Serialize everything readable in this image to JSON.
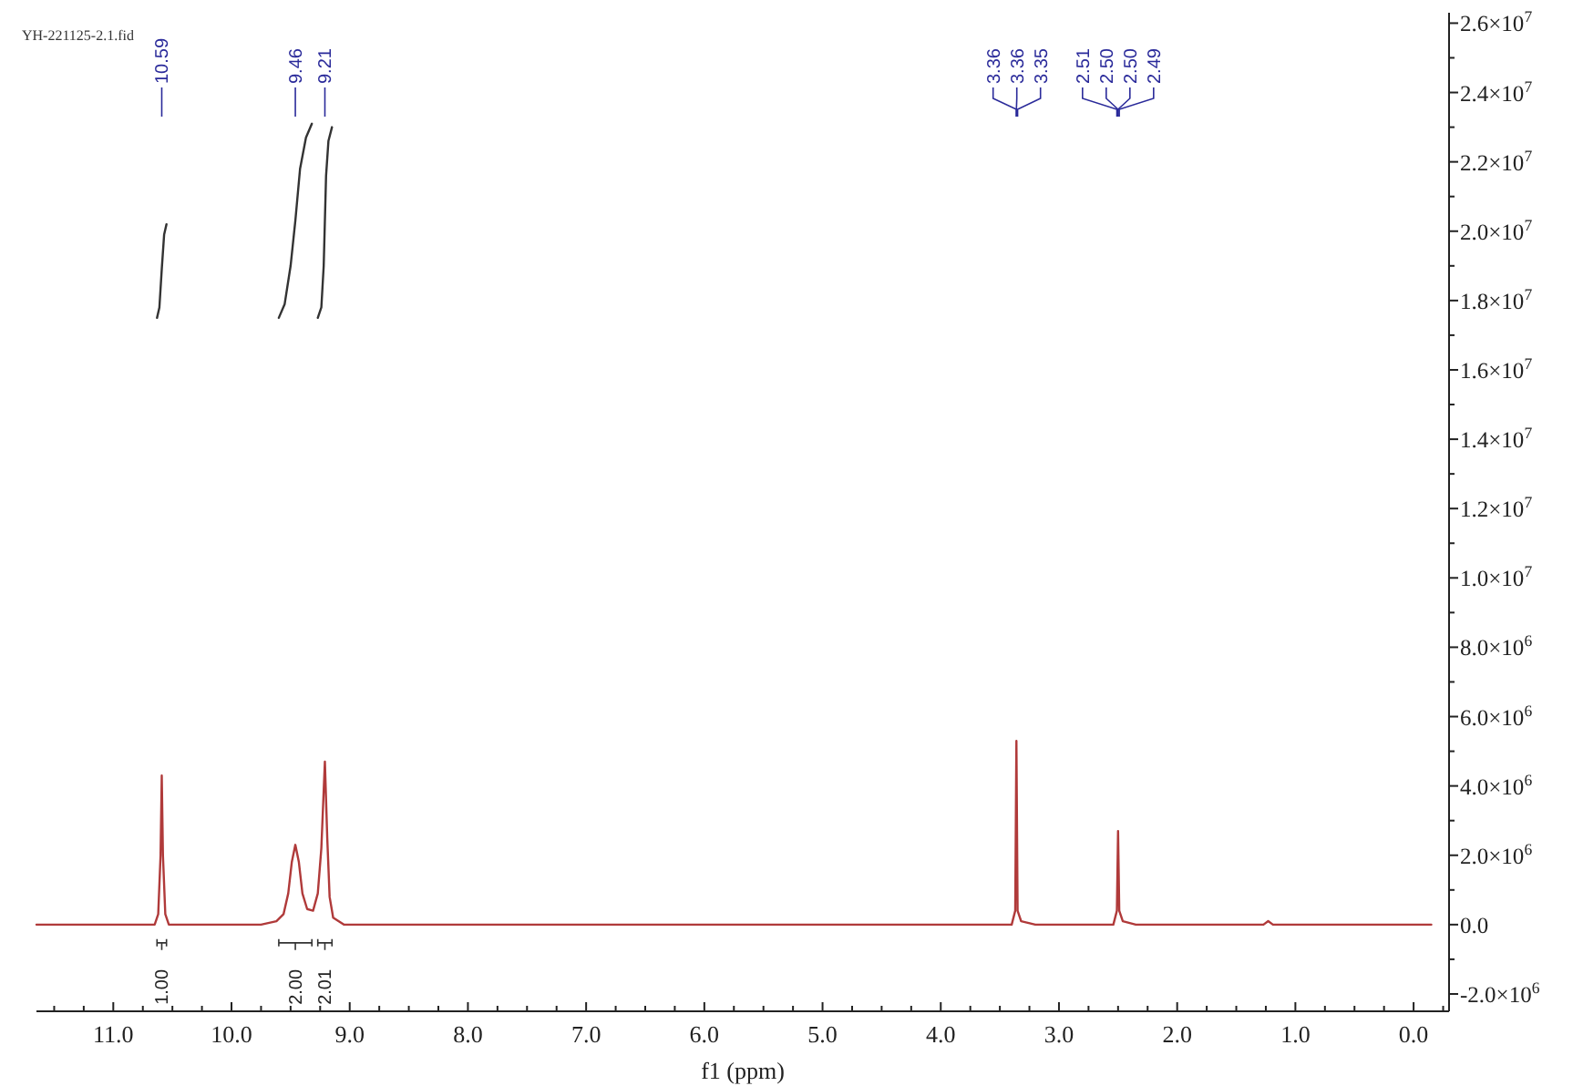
{
  "chart_data": {
    "type": "line",
    "title": "YH-221125-2.1.fid",
    "xlabel": "f1 (ppm)",
    "xlim": [
      11.65,
      -0.3
    ],
    "xticks": [
      {
        "value": 11.5,
        "label": null
      },
      {
        "value": 11.25,
        "label": null
      },
      {
        "value": 11,
        "label": "11.0"
      },
      {
        "value": 10.75,
        "label": null
      },
      {
        "value": 10.5,
        "label": null
      },
      {
        "value": 10.25,
        "label": null
      },
      {
        "value": 10,
        "label": "10.0"
      },
      {
        "value": 9.75,
        "label": null
      },
      {
        "value": 9.5,
        "label": null
      },
      {
        "value": 9.25,
        "label": null
      },
      {
        "value": 9,
        "label": "9.0"
      },
      {
        "value": 8.75,
        "label": null
      },
      {
        "value": 8.5,
        "label": null
      },
      {
        "value": 8.25,
        "label": null
      },
      {
        "value": 8,
        "label": "8.0"
      },
      {
        "value": 7.75,
        "label": null
      },
      {
        "value": 7.5,
        "label": null
      },
      {
        "value": 7.25,
        "label": null
      },
      {
        "value": 7,
        "label": "7.0"
      },
      {
        "value": 6.75,
        "label": null
      },
      {
        "value": 6.5,
        "label": null
      },
      {
        "value": 6.25,
        "label": null
      },
      {
        "value": 6,
        "label": "6.0"
      },
      {
        "value": 5.75,
        "label": null
      },
      {
        "value": 5.5,
        "label": null
      },
      {
        "value": 5.25,
        "label": null
      },
      {
        "value": 5,
        "label": "5.0"
      },
      {
        "value": 4.75,
        "label": null
      },
      {
        "value": 4.5,
        "label": null
      },
      {
        "value": 4.25,
        "label": null
      },
      {
        "value": 4,
        "label": "4.0"
      },
      {
        "value": 3.75,
        "label": null
      },
      {
        "value": 3.5,
        "label": null
      },
      {
        "value": 3.25,
        "label": null
      },
      {
        "value": 3,
        "label": "3.0"
      },
      {
        "value": 2.75,
        "label": null
      },
      {
        "value": 2.5,
        "label": null
      },
      {
        "value": 2.25,
        "label": null
      },
      {
        "value": 2,
        "label": "2.0"
      },
      {
        "value": 1.75,
        "label": null
      },
      {
        "value": 1.5,
        "label": null
      },
      {
        "value": 1.25,
        "label": null
      },
      {
        "value": 1,
        "label": "1.0"
      },
      {
        "value": 0.75,
        "label": null
      },
      {
        "value": 0.5,
        "label": null
      },
      {
        "value": 0.25,
        "label": null
      },
      {
        "value": 0,
        "label": "0.0"
      },
      {
        "value": -0.25,
        "label": null
      }
    ],
    "ylim": [
      -2500000,
      26300000
    ],
    "yticks": [
      {
        "value": -2000000,
        "label": "-2.0×10$^{6}$"
      },
      {
        "value": -1000000,
        "label": null
      },
      {
        "value": 0,
        "label": "0.0"
      },
      {
        "value": 1000000,
        "label": null
      },
      {
        "value": 2000000,
        "label": "2.0×10$^{6}$"
      },
      {
        "value": 3000000,
        "label": null
      },
      {
        "value": 4000000,
        "label": "4.0×10$^{6}$"
      },
      {
        "value": 5000000,
        "label": null
      },
      {
        "value": 6000000,
        "label": "6.0×10$^{6}$"
      },
      {
        "value": 7000000,
        "label": null
      },
      {
        "value": 8000000,
        "label": "8.0×10$^{6}$"
      },
      {
        "value": 9000000,
        "label": null
      },
      {
        "value": 10000000,
        "label": "1.0×10$^{7}$"
      },
      {
        "value": 11000000,
        "label": null
      },
      {
        "value": 12000000,
        "label": "1.2×10$^{7}$"
      },
      {
        "value": 13000000,
        "label": null
      },
      {
        "value": 14000000,
        "label": "1.4×10$^{7}$"
      },
      {
        "value": 15000000,
        "label": null
      },
      {
        "value": 16000000,
        "label": "1.6×10$^{7}$"
      },
      {
        "value": 17000000,
        "label": null
      },
      {
        "value": 18000000,
        "label": "1.8×10$^{7}$"
      },
      {
        "value": 19000000,
        "label": null
      },
      {
        "value": 20000000,
        "label": "2.0×10$^{7}$"
      },
      {
        "value": 21000000,
        "label": null
      },
      {
        "value": 22000000,
        "label": "2.2×10$^{7}$"
      },
      {
        "value": 23000000,
        "label": null
      },
      {
        "value": 24000000,
        "label": "2.4×10$^{7}$"
      },
      {
        "value": 25000000,
        "label": null
      },
      {
        "value": 26000000,
        "label": "2.6×10$^{7}$"
      }
    ],
    "series": [
      {
        "color": "#b03a3a",
        "x": [
          11.65,
          10.65,
          10.62,
          10.6,
          10.59,
          10.58,
          10.56,
          10.53,
          9.75,
          9.62,
          9.56,
          9.52,
          9.49,
          9.46,
          9.43,
          9.4,
          9.36,
          9.31,
          9.27,
          9.24,
          9.21,
          9.19,
          9.17,
          9.14,
          9.05,
          3.4,
          3.37,
          3.36,
          3.35,
          3.32,
          3.2,
          2.54,
          2.51,
          2.5,
          2.49,
          2.46,
          2.35,
          1.27,
          1.23,
          1.19,
          -0.15
        ],
        "values": [
          0,
          0,
          300000,
          2000000,
          4300000,
          2000000,
          300000,
          0,
          0,
          100000,
          300000,
          900000,
          1800000,
          2300000,
          1800000,
          900000,
          450000,
          400000,
          900000,
          2200000,
          4700000,
          2500000,
          800000,
          200000,
          0,
          0,
          400000,
          5300000,
          400000,
          100000,
          0,
          0,
          400000,
          2700000,
          400000,
          100000,
          0,
          0,
          100000,
          0,
          0
        ]
      },
      {
        "color": "#333333",
        "x": [
          10.63,
          10.61,
          10.59,
          10.57,
          10.55
        ],
        "values": [
          17500000,
          17800000,
          18900000,
          19900000,
          20200000
        ]
      },
      {
        "color": "#333333",
        "x": [
          9.6,
          9.55,
          9.5,
          9.46,
          9.42,
          9.37,
          9.32
        ],
        "values": [
          17500000,
          17900000,
          19000000,
          20300000,
          21800000,
          22700000,
          23100000
        ]
      },
      {
        "color": "#333333",
        "x": [
          9.27,
          9.24,
          9.22,
          9.21,
          9.2,
          9.18,
          9.15
        ],
        "values": [
          17500000,
          17800000,
          19000000,
          20300000,
          21600000,
          22600000,
          23000000
        ]
      }
    ],
    "annotations": [
      {
        "text": "10.59",
        "x": 10.59
      },
      {
        "text": "9.46",
        "x": 9.46
      },
      {
        "text": "9.21",
        "x": 9.21
      },
      {
        "text": "3.36",
        "x": 3.36
      },
      {
        "text": "3.36",
        "x": 3.36
      },
      {
        "text": "3.35",
        "x": 3.35
      },
      {
        "text": "2.51",
        "x": 2.51
      },
      {
        "text": "2.50",
        "x": 2.5
      },
      {
        "text": "2.50",
        "x": 2.5
      },
      {
        "text": "2.49",
        "x": 2.49
      },
      "1.00",
      "2.00",
      "2.01"
    ]
  }
}
